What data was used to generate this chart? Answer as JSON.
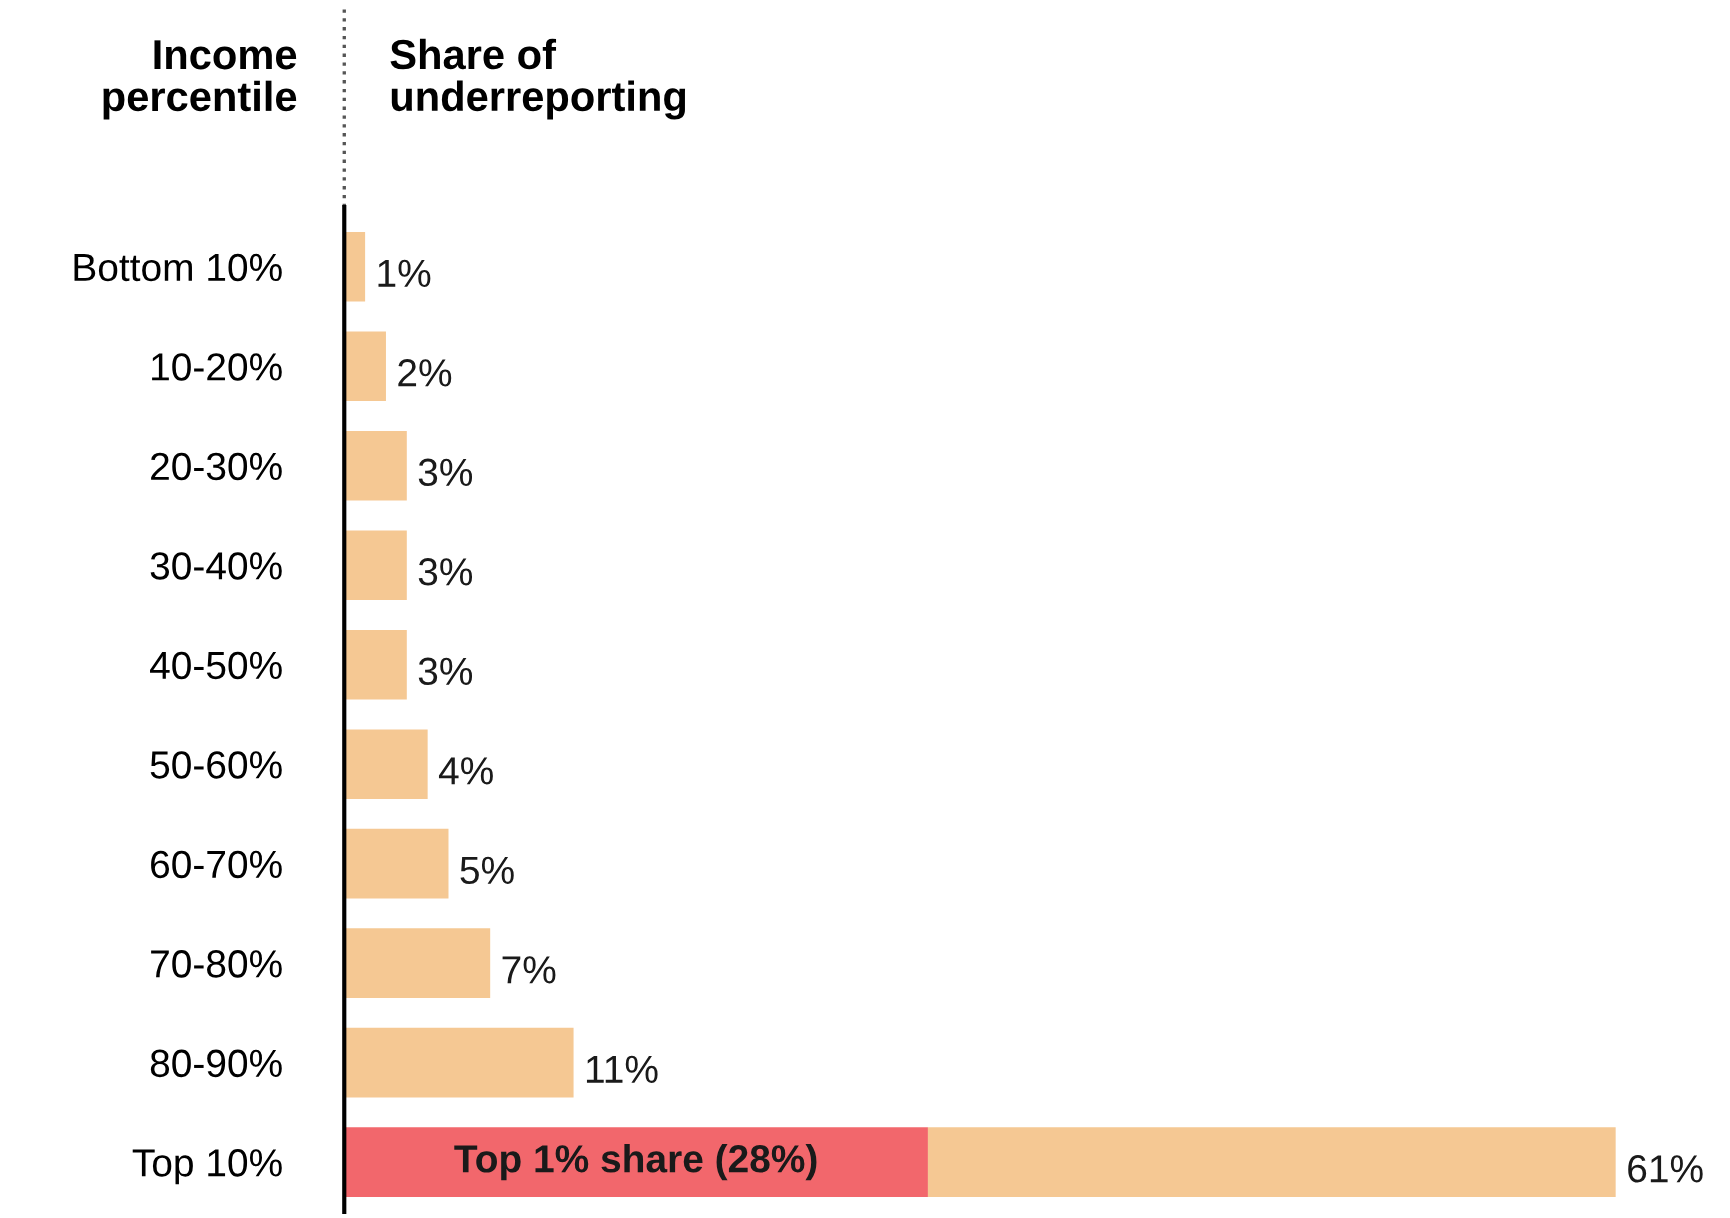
{
  "chart_data": {
    "type": "bar",
    "orientation": "horizontal",
    "stacked": true,
    "ylabel": "Income percentile",
    "xlabel": "Share of underreporting",
    "categories": [
      "Bottom 10%",
      "10-20%",
      "20-30%",
      "30-40%",
      "40-50%",
      "50-60%",
      "60-70%",
      "70-80%",
      "80-90%",
      "Top 10%"
    ],
    "series": [
      {
        "color": "#f2676c",
        "values": [
          null,
          null,
          null,
          null,
          null,
          null,
          null,
          null,
          null,
          28
        ],
        "value_labels": [
          null,
          null,
          null,
          null,
          null,
          null,
          null,
          null,
          null,
          "Top 1% share (28%)"
        ]
      },
      {
        "color": "#f5c893",
        "values": [
          1,
          2,
          3,
          3,
          3,
          4,
          5,
          7,
          11,
          33
        ]
      }
    ],
    "totals": [
      "1%",
      "2%",
      "3%",
      "3%",
      "3%",
      "4%",
      "5%",
      "7%",
      "11%",
      "61%"
    ],
    "xlim": [
      0,
      61
    ],
    "grid": false,
    "legend": false,
    "tick_labels": "y"
  }
}
